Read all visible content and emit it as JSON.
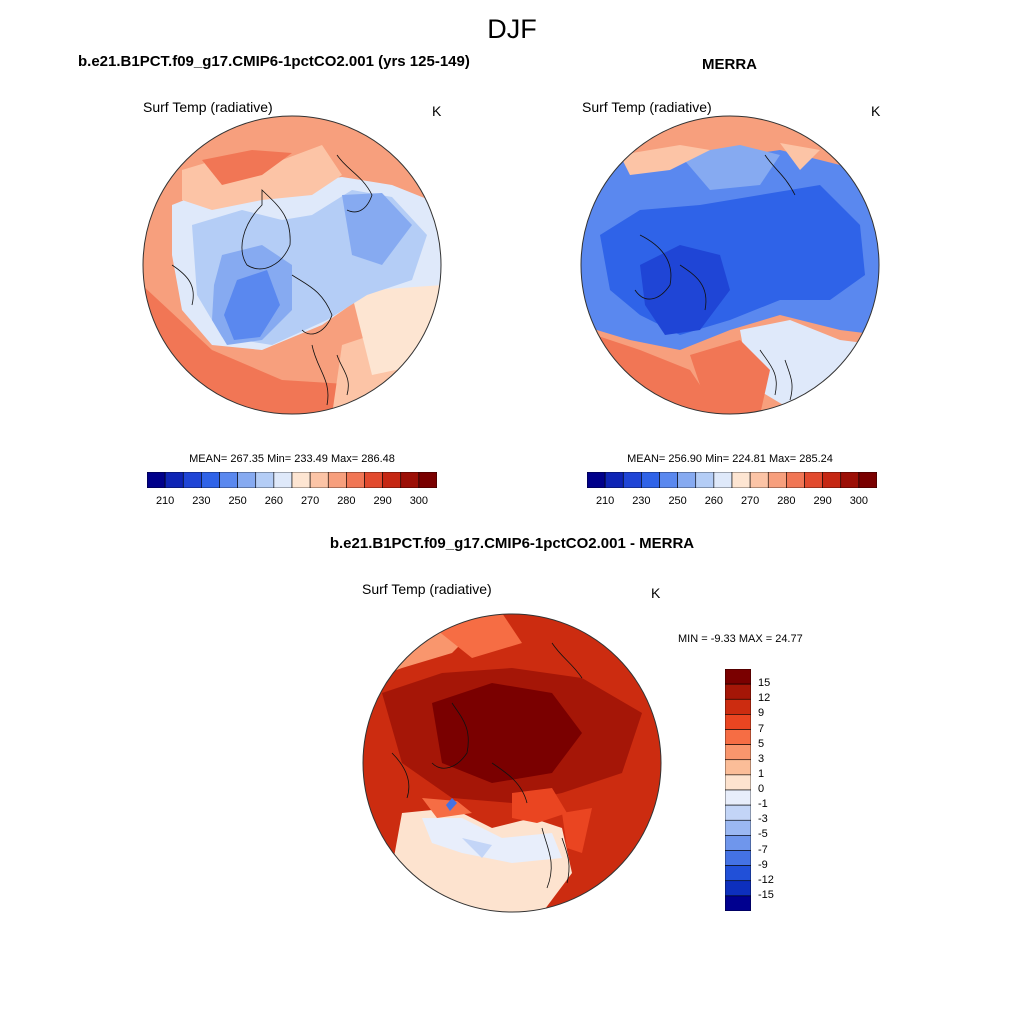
{
  "figure": {
    "title": "DJF"
  },
  "panels": {
    "model": {
      "title": "b.e21.B1PCT.f09_g17.CMIP6-1pctCO2.001 (yrs 125-149)",
      "variable": "Surf Temp (radiative)",
      "units": "K",
      "stats": "MEAN= 267.35  Min= 233.49  Max= 286.48"
    },
    "obs": {
      "title": "MERRA",
      "variable": "Surf Temp (radiative)",
      "units": "K",
      "stats": "MEAN= 256.90  Min= 224.81  Max= 285.24"
    },
    "diff": {
      "title": "b.e21.B1PCT.f09_g17.CMIP6-1pctCO2.001 - MERRA",
      "variable": "Surf Temp (radiative)",
      "units": "K",
      "minmax": "MIN =  -9.33 MAX =  24.77"
    }
  },
  "colorbars": {
    "abs": {
      "colors": [
        "#00008a",
        "#0e24b5",
        "#1f45d6",
        "#2f63e8",
        "#5a88ef",
        "#86aaf1",
        "#b4cdf6",
        "#dfe9fa",
        "#fde5d2",
        "#fcc4a6",
        "#f79f7d",
        "#f17655",
        "#e24a2e",
        "#c52713",
        "#9c0f06",
        "#7a0000"
      ],
      "ticks": [
        "210",
        "230",
        "250",
        "260",
        "270",
        "280",
        "290",
        "300"
      ]
    },
    "diff": {
      "colors": [
        "#7a0000",
        "#a51607",
        "#cc2c10",
        "#ea4521",
        "#f66d44",
        "#f9966d",
        "#fbbd98",
        "#fde3cf",
        "#e8eefb",
        "#c3d5f7",
        "#9bb8f2",
        "#6f96ec",
        "#4472e4",
        "#2150d8",
        "#0d2fbd",
        "#00008f"
      ],
      "ticks": [
        "15",
        "12",
        "9",
        "7",
        "5",
        "3",
        "1",
        "0",
        "-1",
        "-3",
        "-5",
        "-7",
        "-9",
        "-12",
        "-15"
      ]
    }
  }
}
